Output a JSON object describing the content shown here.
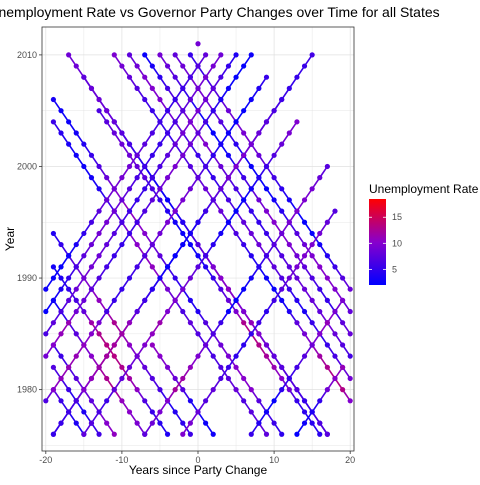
{
  "chart_data": {
    "type": "scatter",
    "title": "Unemployment Rate vs Governor Party Changes over Time for all States",
    "xlabel": "Years since Party Change",
    "ylabel": "Year",
    "xlim": [
      -20.5,
      20.5
    ],
    "ylim": [
      1974.5,
      2012.5
    ],
    "x_ticks": [
      -20,
      -10,
      0,
      10,
      20
    ],
    "y_ticks": [
      1980,
      1990,
      2000,
      2010
    ],
    "grid": true,
    "legend": {
      "title": "Unemployment Rate",
      "placement": "right",
      "ticks": [
        5,
        10,
        15
      ],
      "range": [
        2,
        18.5
      ],
      "low_color": "#0000ff",
      "mid_color": "#8800cc",
      "high_color": "#ff0000"
    },
    "series_lines": [
      {
        "start_x": -19,
        "start_year": 2006,
        "slope": 1,
        "end_year": 1976
      },
      {
        "start_x": -19,
        "start_year": 2004,
        "slope": 1,
        "end_year": 1976
      },
      {
        "start_x": -19,
        "start_year": 1994,
        "slope": 1,
        "end_year": 1976
      },
      {
        "start_x": -19,
        "start_year": 1991,
        "slope": 1,
        "end_year": 1976
      },
      {
        "start_x": -19,
        "start_year": 1988,
        "slope": 1,
        "end_year": 1976
      },
      {
        "start_x": -19,
        "start_year": 1984,
        "slope": 1,
        "end_year": 1976
      },
      {
        "start_x": -19,
        "start_year": 1982,
        "slope": 1,
        "end_year": 1976
      },
      {
        "start_x": -19,
        "start_year": 1980,
        "slope": 1,
        "end_year": 1976
      },
      {
        "start_x": -17,
        "start_year": 2010,
        "slope": 1,
        "end_year": 1976
      },
      {
        "start_x": -15,
        "start_year": 2008,
        "slope": 1,
        "end_year": 1976
      },
      {
        "start_x": -13,
        "start_year": 2005,
        "slope": 1,
        "end_year": 1976
      },
      {
        "start_x": -11,
        "start_year": 2010,
        "slope": 1,
        "end_year": 1976
      },
      {
        "start_x": -9,
        "start_year": 2010,
        "slope": 1,
        "end_year": 1976
      },
      {
        "start_x": -7,
        "start_year": 2010,
        "slope": 1,
        "end_year": 1976
      },
      {
        "start_x": -6,
        "start_year": 1984,
        "slope": 1,
        "end_year": 1976
      },
      {
        "start_x": -5,
        "start_year": 2010,
        "slope": 1,
        "end_year": 1976
      },
      {
        "start_x": -3,
        "start_year": 2010,
        "slope": 1,
        "end_year": 1976
      },
      {
        "start_x": -1,
        "start_year": 2010,
        "slope": 1,
        "end_year": 1976
      },
      {
        "start_x": 1,
        "start_year": 2010,
        "slope": -1,
        "end_year": 1976
      },
      {
        "start_x": 3,
        "start_year": 2010,
        "slope": -1,
        "end_year": 1976
      },
      {
        "start_x": 5,
        "start_year": 2010,
        "slope": -1,
        "end_year": 1976
      },
      {
        "start_x": 7,
        "start_year": 2010,
        "slope": -1,
        "end_year": 1976
      },
      {
        "start_x": 9,
        "start_year": 2008,
        "slope": -1,
        "end_year": 1976
      },
      {
        "start_x": 11,
        "start_year": 2006,
        "slope": -1,
        "end_year": 1976
      },
      {
        "start_x": 13,
        "start_year": 2004,
        "slope": -1,
        "end_year": 1976
      },
      {
        "start_x": 15,
        "start_year": 2010,
        "slope": -1,
        "end_year": 1976
      },
      {
        "start_x": 17,
        "start_year": 2000,
        "slope": -1,
        "end_year": 1976
      },
      {
        "start_x": 18,
        "start_year": 1996,
        "slope": -1,
        "end_year": 1976
      },
      {
        "start_x": 19,
        "start_year": 1988,
        "slope": -1,
        "end_year": 1976
      },
      {
        "start_x": 19,
        "start_year": 1982,
        "slope": -1,
        "end_year": 1976
      }
    ],
    "extra_points": [
      {
        "x": 0,
        "year": 2011,
        "rate": 9
      }
    ]
  }
}
